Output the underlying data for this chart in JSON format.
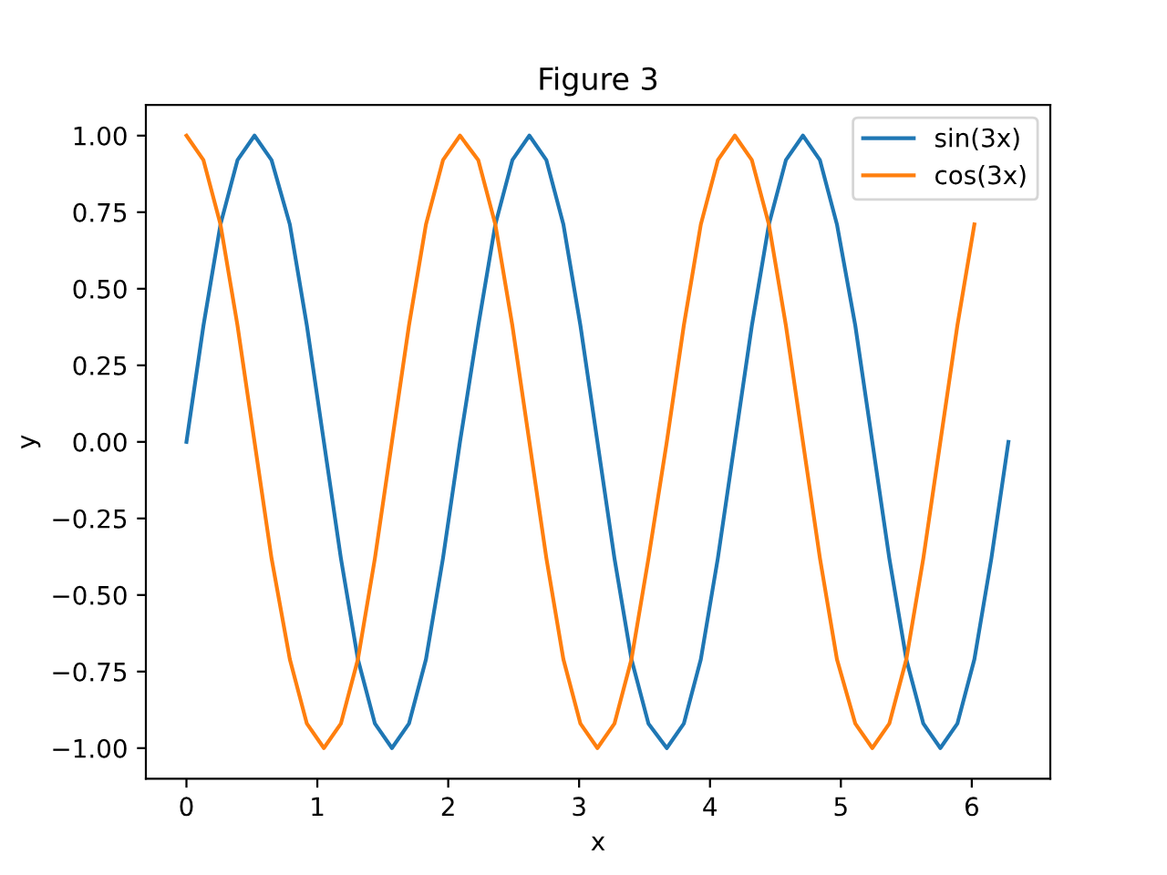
{
  "chart_data": {
    "type": "line",
    "title": "Figure 3",
    "xlabel": "x",
    "ylabel": "y",
    "x": [
      0,
      0.13,
      0.26,
      0.39,
      0.52,
      0.65,
      0.79,
      0.92,
      1.05,
      1.18,
      1.31,
      1.44,
      1.57,
      1.7,
      1.83,
      1.96,
      2.09,
      2.23,
      2.36,
      2.49,
      2.62,
      2.75,
      2.88,
      3.01,
      3.14,
      3.27,
      3.4,
      3.53,
      3.67,
      3.8,
      3.93,
      4.06,
      4.19,
      4.32,
      4.45,
      4.58,
      4.71,
      4.84,
      4.97,
      5.11,
      5.24,
      5.37,
      5.5,
      5.63,
      5.76,
      5.89,
      6.02,
      6.15,
      6.28
    ],
    "series": [
      {
        "name": "sin(3x)",
        "color": "#1f77b4",
        "values": [
          0,
          0.38,
          0.71,
          0.92,
          1,
          0.92,
          0.71,
          0.38,
          0,
          -0.38,
          -0.71,
          -0.92,
          -1,
          -0.92,
          -0.71,
          -0.38,
          0,
          0.38,
          0.71,
          0.92,
          1,
          0.92,
          0.71,
          0.38,
          0,
          -0.38,
          -0.71,
          -0.92,
          -1,
          -0.92,
          -0.71,
          -0.38,
          0,
          0.38,
          0.71,
          0.92,
          1,
          0.92,
          0.71,
          0.38,
          0,
          -0.38,
          -0.71,
          -0.92,
          -1,
          -0.92,
          -0.71,
          -0.38,
          0
        ]
      },
      {
        "name": "cos(3x)",
        "color": "#ff7f0e",
        "values": [
          1,
          0.92,
          0.71,
          0.38,
          0,
          -0.38,
          -0.71,
          -0.92,
          -1,
          -0.92,
          -0.71,
          -0.38,
          0,
          0.38,
          0.71,
          0.92,
          1,
          0.92,
          0.71,
          0.38,
          0,
          -0.38,
          -0.71,
          -0.92,
          -1,
          -0.92,
          -0.71,
          -0.38,
          0,
          0.38,
          0.71,
          0.92,
          1,
          0.92,
          0.71,
          0.38,
          0,
          -0.38,
          -0.71,
          -0.92,
          -1,
          -0.92,
          -0.71,
          -0.38,
          0,
          0.38,
          0.71,
          null,
          null
        ]
      }
    ],
    "xlim": [
      -0.31,
      6.6
    ],
    "xticks": [
      0,
      1,
      2,
      3,
      4,
      5,
      6
    ],
    "ylim": [
      -1.1,
      1.1
    ],
    "yticks": [
      {
        "value": -1,
        "label": "−1.00"
      },
      {
        "value": -0.75,
        "label": "−0.75"
      },
      {
        "value": -0.5,
        "label": "−0.50"
      },
      {
        "value": -0.25,
        "label": "−0.25"
      },
      {
        "value": 0,
        "label": "0.00"
      },
      {
        "value": 0.25,
        "label": "0.25"
      },
      {
        "value": 0.5,
        "label": "0.50"
      },
      {
        "value": 0.75,
        "label": "0.75"
      },
      {
        "value": 1,
        "label": "1.00"
      }
    ],
    "legend": "top right",
    "grid": false,
    "marker": "none",
    "line_style": "solid"
  }
}
